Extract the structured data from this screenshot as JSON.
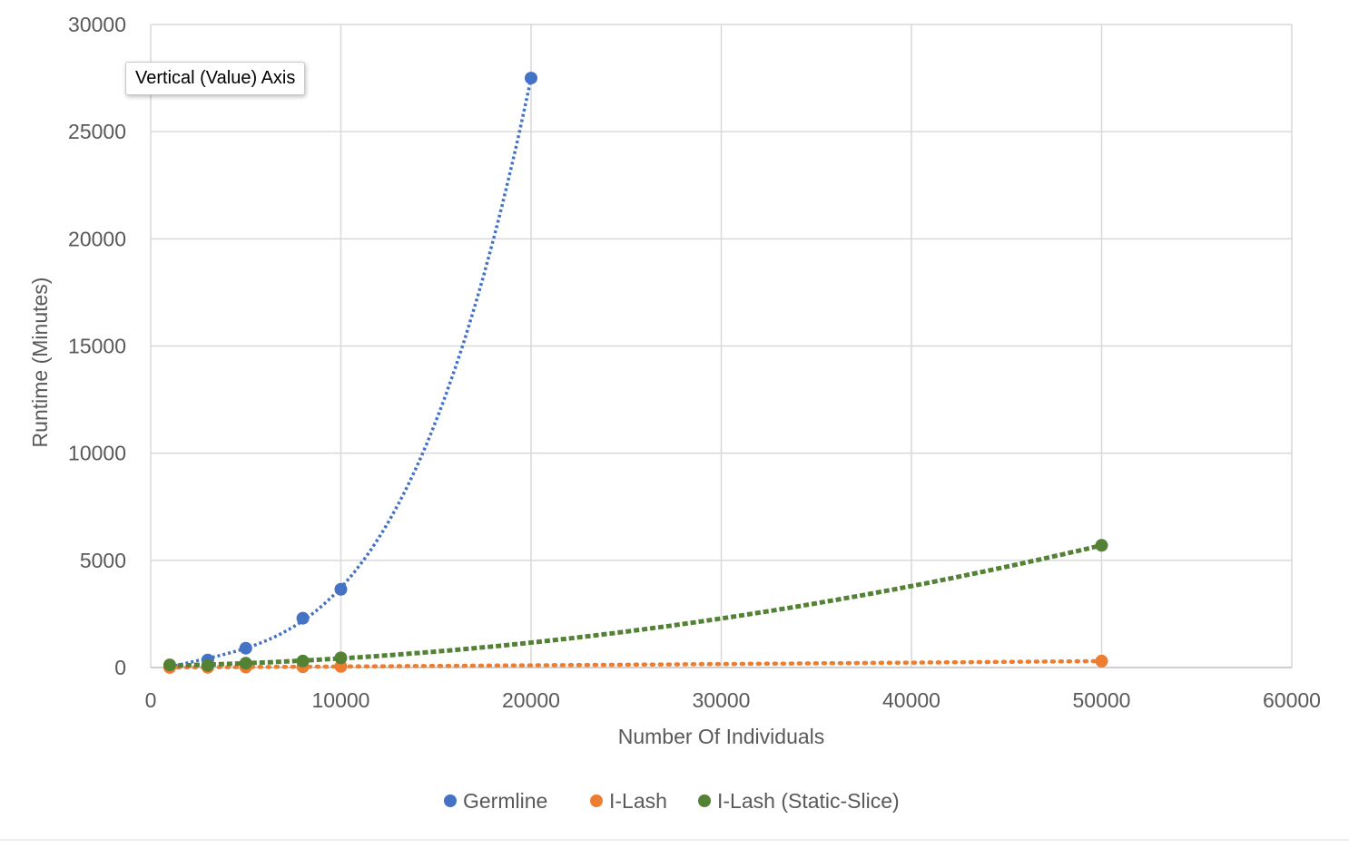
{
  "chart_data": {
    "type": "scatter",
    "title": "",
    "xlabel": "Number Of Individuals",
    "ylabel": "Runtime (Minutes)",
    "xlim": [
      0,
      60000
    ],
    "ylim": [
      0,
      30000
    ],
    "xticks": [
      0,
      10000,
      20000,
      30000,
      40000,
      50000,
      60000
    ],
    "yticks": [
      0,
      5000,
      10000,
      15000,
      20000,
      25000,
      30000
    ],
    "grid": true,
    "legend_position": "bottom",
    "trendlines": "dotted",
    "series": [
      {
        "name": "Germline",
        "color": "#4472c4",
        "x": [
          1000,
          3000,
          5000,
          8000,
          10000,
          20000
        ],
        "y": [
          60,
          350,
          900,
          2300,
          3650,
          27500
        ]
      },
      {
        "name": "I-Lash",
        "color": "#ed7d31",
        "x": [
          1000,
          3000,
          5000,
          8000,
          10000,
          50000
        ],
        "y": [
          5,
          10,
          20,
          35,
          50,
          300
        ]
      },
      {
        "name": "I-Lash (Static-Slice)",
        "color": "#548235",
        "x": [
          1000,
          3000,
          5000,
          8000,
          10000,
          50000
        ],
        "y": [
          120,
          100,
          200,
          300,
          450,
          5700
        ]
      }
    ]
  },
  "tooltip": {
    "text": "Vertical (Value) Axis"
  }
}
